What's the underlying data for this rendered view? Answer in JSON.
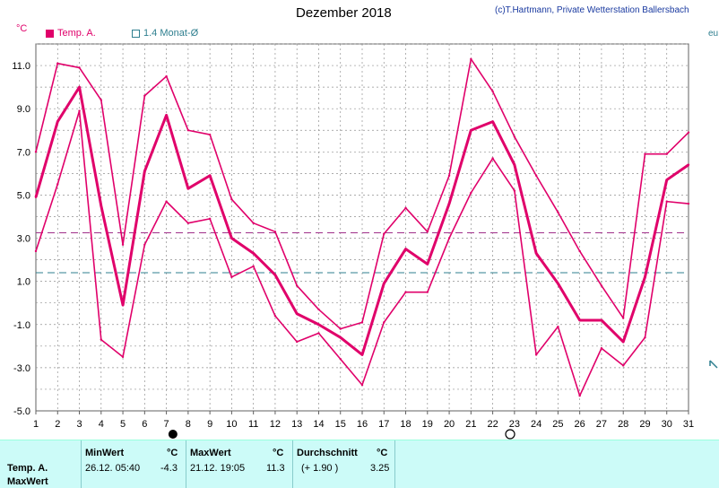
{
  "title": "Dezember 2018",
  "copyright": "(c)T.Hartmann, Private Wetterstation Ballersbach",
  "unit": "°C",
  "legend": {
    "series_a": "Temp. A.",
    "series_b": "1.4 Monat-Ø"
  },
  "edge_label": "eu",
  "colors": {
    "temp": "#e0006a",
    "avg": "#2f7f8f",
    "grid": "#909090"
  },
  "chart_data": {
    "type": "line",
    "x": [
      1,
      2,
      3,
      4,
      5,
      6,
      7,
      8,
      9,
      10,
      11,
      12,
      13,
      14,
      15,
      16,
      17,
      18,
      19,
      20,
      21,
      22,
      23,
      24,
      25,
      26,
      27,
      28,
      29,
      30,
      31
    ],
    "series": [
      {
        "name": "",
        "role": "max",
        "values": [
          7.0,
          11.1,
          10.9,
          9.4,
          2.7,
          9.6,
          10.5,
          8.0,
          7.8,
          4.8,
          3.7,
          3.3,
          0.8,
          -0.3,
          -1.2,
          -0.9,
          3.2,
          4.4,
          3.3,
          5.9,
          11.3,
          9.8,
          7.7,
          5.9,
          4.2,
          2.4,
          0.8,
          -0.7,
          6.9,
          6.9,
          7.9
        ]
      },
      {
        "name": "Temp. A.",
        "role": "mean",
        "values": [
          4.9,
          8.4,
          10.0,
          4.5,
          -0.1,
          6.1,
          8.7,
          5.3,
          5.9,
          3.0,
          2.3,
          1.3,
          -0.5,
          -1.0,
          -1.6,
          -2.4,
          0.9,
          2.5,
          1.8,
          4.6,
          8.0,
          8.4,
          6.4,
          2.3,
          0.9,
          -0.8,
          -0.8,
          -1.8,
          1.2,
          5.7,
          6.4
        ]
      },
      {
        "name": "",
        "role": "min",
        "values": [
          2.4,
          5.5,
          8.9,
          -1.7,
          -2.5,
          2.7,
          4.7,
          3.7,
          3.9,
          1.2,
          1.7,
          -0.6,
          -1.8,
          -1.4,
          -2.6,
          -3.8,
          -0.9,
          0.5,
          0.5,
          3.0,
          5.1,
          6.7,
          5.2,
          -2.4,
          -1.1,
          -4.3,
          -2.1,
          -2.9,
          -1.6,
          4.7,
          4.6
        ]
      }
    ],
    "reference_lines": [
      {
        "name": "Durchschnitt",
        "value": 3.25,
        "color": "#a0308a"
      },
      {
        "name": "1.4 Monat-Ø",
        "value": 1.4,
        "color": "#2f7f8f"
      }
    ],
    "ylim": [
      -5.0,
      12.0
    ],
    "yticks": [
      "11.0",
      "9.0",
      "7.0",
      "5.0",
      "3.0",
      "1.0",
      "-1.0",
      "-3.0",
      "-5.0"
    ],
    "ytick_values": [
      11,
      9,
      7,
      5,
      3,
      1,
      -1,
      -3,
      -5
    ],
    "xlim": [
      1,
      31
    ],
    "grid": true,
    "xlabel": "",
    "ylabel": ""
  },
  "stats": {
    "row_label_1": "Temp. A.",
    "row_label_2": "MaxWert",
    "min_header": "MinWert",
    "min_unit": "°C",
    "min_time": "26.12.  05:40",
    "min_value": "-4.3",
    "max_header": "MaxWert",
    "max_unit": "°C",
    "max_time": "21.12.  19:05",
    "max_value": "11.3",
    "avg_header": "Durchschnitt",
    "avg_unit": "°C",
    "avg_delta": "(+ 1.90 )",
    "avg_value": "3.25"
  }
}
